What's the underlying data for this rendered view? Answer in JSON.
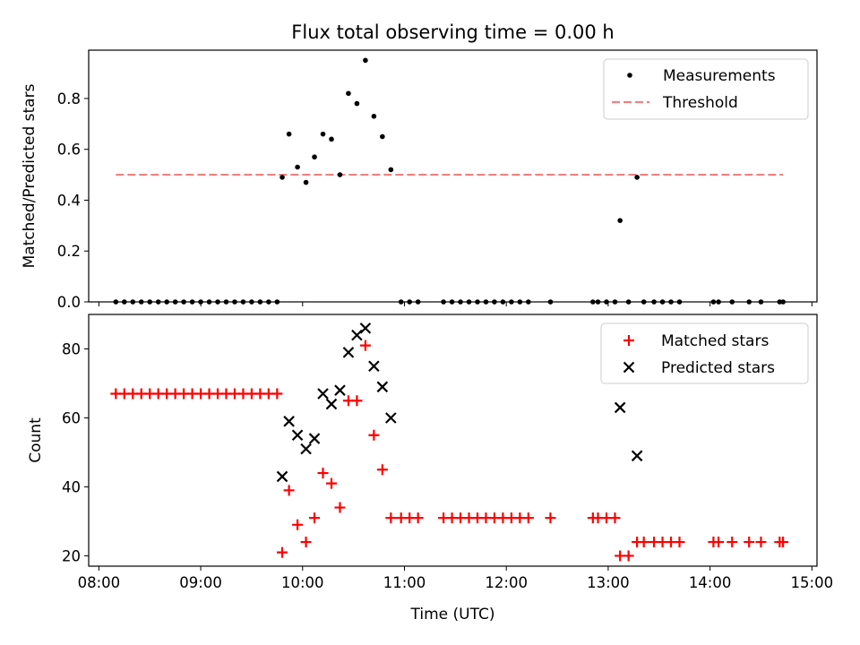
{
  "title": "Flux total observing time = 0.00 h",
  "x_axis": {
    "label": "Time (UTC)",
    "range_hours": [
      7.9,
      15.05
    ],
    "ticks": [
      "08:00",
      "09:00",
      "10:00",
      "11:00",
      "12:00",
      "13:00",
      "14:00",
      "15:00"
    ],
    "tick_hours": [
      8,
      9,
      10,
      11,
      12,
      13,
      14,
      15
    ]
  },
  "colors": {
    "measurements": "#000000",
    "threshold": "#f08080",
    "matched": "#ff0000",
    "predicted": "#000000"
  },
  "chart_data": [
    {
      "type": "scatter",
      "ylabel": "Matched/Predicted stars",
      "ylim": [
        0,
        0.99
      ],
      "yticks": [
        "0.0",
        "0.2",
        "0.4",
        "0.6",
        "0.8"
      ],
      "ytick_values": [
        0.0,
        0.2,
        0.4,
        0.6,
        0.8
      ],
      "legend": {
        "placement": "upper right",
        "entries": [
          "Measurements",
          "Threshold"
        ]
      },
      "threshold": {
        "name": "Threshold",
        "value": 0.5,
        "x_range": [
          "08:10",
          "14:43"
        ]
      },
      "measurements": {
        "name": "Measurements",
        "points": [
          [
            "08:10",
            0.0
          ],
          [
            "08:15",
            0.0
          ],
          [
            "08:20",
            0.0
          ],
          [
            "08:25",
            0.0
          ],
          [
            "08:30",
            0.0
          ],
          [
            "08:35",
            0.0
          ],
          [
            "08:40",
            0.0
          ],
          [
            "08:45",
            0.0
          ],
          [
            "08:50",
            0.0
          ],
          [
            "08:55",
            0.0
          ],
          [
            "09:00",
            0.0
          ],
          [
            "09:05",
            0.0
          ],
          [
            "09:10",
            0.0
          ],
          [
            "09:15",
            0.0
          ],
          [
            "09:20",
            0.0
          ],
          [
            "09:25",
            0.0
          ],
          [
            "09:30",
            0.0
          ],
          [
            "09:35",
            0.0
          ],
          [
            "09:40",
            0.0
          ],
          [
            "09:45",
            0.0
          ],
          [
            "09:48",
            0.49
          ],
          [
            "09:52",
            0.66
          ],
          [
            "09:57",
            0.53
          ],
          [
            "10:02",
            0.47
          ],
          [
            "10:07",
            0.57
          ],
          [
            "10:12",
            0.66
          ],
          [
            "10:17",
            0.64
          ],
          [
            "10:22",
            0.5
          ],
          [
            "10:27",
            0.82
          ],
          [
            "10:32",
            0.78
          ],
          [
            "10:37",
            0.95
          ],
          [
            "10:42",
            0.73
          ],
          [
            "10:47",
            0.65
          ],
          [
            "10:52",
            0.52
          ],
          [
            "10:58",
            0.0
          ],
          [
            "11:03",
            0.0
          ],
          [
            "11:08",
            0.0
          ],
          [
            "11:23",
            0.0
          ],
          [
            "11:28",
            0.0
          ],
          [
            "11:33",
            0.0
          ],
          [
            "11:38",
            0.0
          ],
          [
            "11:43",
            0.0
          ],
          [
            "11:48",
            0.0
          ],
          [
            "11:53",
            0.0
          ],
          [
            "11:58",
            0.0
          ],
          [
            "12:03",
            0.0
          ],
          [
            "12:08",
            0.0
          ],
          [
            "12:13",
            0.0
          ],
          [
            "12:26",
            0.0
          ],
          [
            "12:51",
            0.0
          ],
          [
            "12:54",
            0.0
          ],
          [
            "12:59",
            0.0
          ],
          [
            "13:04",
            0.0
          ],
          [
            "13:07",
            0.32
          ],
          [
            "13:17",
            0.49
          ],
          [
            "13:12",
            0.0
          ],
          [
            "13:21",
            0.0
          ],
          [
            "13:27",
            0.0
          ],
          [
            "13:32",
            0.0
          ],
          [
            "13:37",
            0.0
          ],
          [
            "13:42",
            0.0
          ],
          [
            "14:02",
            0.0
          ],
          [
            "14:05",
            0.0
          ],
          [
            "14:13",
            0.0
          ],
          [
            "14:23",
            0.0
          ],
          [
            "14:30",
            0.0
          ],
          [
            "14:41",
            0.0
          ],
          [
            "14:43",
            0.0
          ]
        ]
      }
    },
    {
      "type": "scatter",
      "ylabel": "Count",
      "ylim": [
        17,
        90
      ],
      "yticks": [
        "20",
        "40",
        "60",
        "80"
      ],
      "ytick_values": [
        20,
        40,
        60,
        80
      ],
      "legend": {
        "placement": "upper right",
        "entries": [
          "Matched stars",
          "Predicted stars"
        ]
      },
      "series": [
        {
          "name": "Matched stars",
          "marker": "plus",
          "points": [
            [
              "08:10",
              67
            ],
            [
              "08:15",
              67
            ],
            [
              "08:20",
              67
            ],
            [
              "08:25",
              67
            ],
            [
              "08:30",
              67
            ],
            [
              "08:35",
              67
            ],
            [
              "08:40",
              67
            ],
            [
              "08:45",
              67
            ],
            [
              "08:50",
              67
            ],
            [
              "08:55",
              67
            ],
            [
              "09:00",
              67
            ],
            [
              "09:05",
              67
            ],
            [
              "09:10",
              67
            ],
            [
              "09:15",
              67
            ],
            [
              "09:20",
              67
            ],
            [
              "09:25",
              67
            ],
            [
              "09:30",
              67
            ],
            [
              "09:35",
              67
            ],
            [
              "09:40",
              67
            ],
            [
              "09:45",
              67
            ],
            [
              "09:48",
              21
            ],
            [
              "09:52",
              39
            ],
            [
              "09:57",
              29
            ],
            [
              "10:02",
              24
            ],
            [
              "10:07",
              31
            ],
            [
              "10:12",
              44
            ],
            [
              "10:17",
              41
            ],
            [
              "10:22",
              34
            ],
            [
              "10:27",
              65
            ],
            [
              "10:32",
              65
            ],
            [
              "10:37",
              81
            ],
            [
              "10:42",
              55
            ],
            [
              "10:47",
              45
            ],
            [
              "10:52",
              31
            ],
            [
              "10:58",
              31
            ],
            [
              "11:03",
              31
            ],
            [
              "11:08",
              31
            ],
            [
              "11:23",
              31
            ],
            [
              "11:28",
              31
            ],
            [
              "11:33",
              31
            ],
            [
              "11:38",
              31
            ],
            [
              "11:43",
              31
            ],
            [
              "11:48",
              31
            ],
            [
              "11:53",
              31
            ],
            [
              "11:58",
              31
            ],
            [
              "12:03",
              31
            ],
            [
              "12:08",
              31
            ],
            [
              "12:13",
              31
            ],
            [
              "12:26",
              31
            ],
            [
              "12:51",
              31
            ],
            [
              "12:54",
              31
            ],
            [
              "12:59",
              31
            ],
            [
              "13:04",
              31
            ],
            [
              "13:07",
              20
            ],
            [
              "13:12",
              20
            ],
            [
              "13:17",
              24
            ],
            [
              "13:21",
              24
            ],
            [
              "13:27",
              24
            ],
            [
              "13:32",
              24
            ],
            [
              "13:37",
              24
            ],
            [
              "13:42",
              24
            ],
            [
              "14:02",
              24
            ],
            [
              "14:05",
              24
            ],
            [
              "14:13",
              24
            ],
            [
              "14:23",
              24
            ],
            [
              "14:30",
              24
            ],
            [
              "14:41",
              24
            ],
            [
              "14:43",
              24
            ]
          ]
        },
        {
          "name": "Predicted stars",
          "marker": "x",
          "points": [
            [
              "09:48",
              43
            ],
            [
              "09:52",
              59
            ],
            [
              "09:57",
              55
            ],
            [
              "10:02",
              51
            ],
            [
              "10:07",
              54
            ],
            [
              "10:12",
              67
            ],
            [
              "10:17",
              64
            ],
            [
              "10:22",
              68
            ],
            [
              "10:27",
              79
            ],
            [
              "10:32",
              84
            ],
            [
              "10:37",
              86
            ],
            [
              "10:42",
              75
            ],
            [
              "10:47",
              69
            ],
            [
              "10:52",
              60
            ],
            [
              "13:07",
              63
            ],
            [
              "13:17",
              49
            ]
          ]
        }
      ]
    }
  ]
}
